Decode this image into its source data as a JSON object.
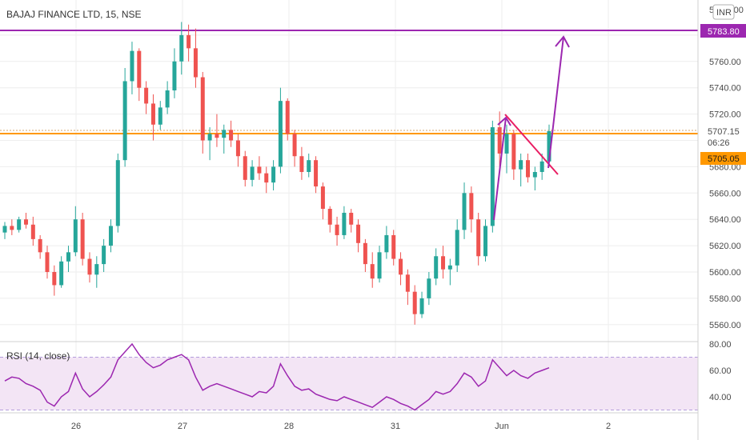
{
  "header": {
    "symbol_title": "BAJAJ FINANCE LTD, 15, NSE",
    "currency_badge": "INR"
  },
  "price_axis": {
    "top_label_partial": "5 800.00",
    "labels": [
      "5760.00",
      "5740.00",
      "5720.00",
      "5680.00",
      "5660.00",
      "5640.00",
      "5620.00",
      "5600.00",
      "5580.00",
      "5560.00"
    ]
  },
  "rsi_axis": {
    "labels": [
      "80.00",
      "60.00",
      "40.00"
    ]
  },
  "time_axis": {
    "labels": [
      "26",
      "27",
      "28",
      "31",
      "Jun",
      "2"
    ]
  },
  "tags": {
    "resistance": "5783.80",
    "last_price": "5707.15",
    "countdown": "06:26",
    "support": "5705.05"
  },
  "indicator": {
    "label": "RSI (14, close)"
  },
  "colors": {
    "up": "#26a69a",
    "down": "#ef5350",
    "resistance_line": "#9c27b0",
    "support_line": "#ff9800",
    "rsi_line": "#9c27b0",
    "rsi_band": "#f3e5f5",
    "trendline_red": "#e91e63",
    "grid": "#eeeeee"
  },
  "chart_data": [
    {
      "type": "candlestick",
      "symbol": "BAJAJ FINANCE LTD",
      "interval": "15",
      "exchange": "NSE",
      "y_range": [
        5550,
        5800
      ],
      "x_labels": [
        "26",
        "27",
        "28",
        "31",
        "Jun",
        "2"
      ],
      "horizontal_levels": [
        {
          "value": 5783.8,
          "color": "#9c27b0"
        },
        {
          "value": 5705.05,
          "color": "#ff9800"
        }
      ],
      "last_price": 5707.15,
      "candles": [
        [
          5630,
          5638,
          5625,
          5635
        ],
        [
          5635,
          5640,
          5628,
          5632
        ],
        [
          5632,
          5642,
          5630,
          5640
        ],
        [
          5640,
          5645,
          5633,
          5636
        ],
        [
          5636,
          5642,
          5620,
          5625
        ],
        [
          5625,
          5628,
          5610,
          5615
        ],
        [
          5615,
          5620,
          5595,
          5600
        ],
        [
          5600,
          5605,
          5582,
          5590
        ],
        [
          5590,
          5612,
          5588,
          5608
        ],
        [
          5608,
          5620,
          5600,
          5615
        ],
        [
          5615,
          5650,
          5612,
          5640
        ],
        [
          5640,
          5645,
          5605,
          5610
        ],
        [
          5610,
          5615,
          5592,
          5598
        ],
        [
          5598,
          5612,
          5588,
          5606
        ],
        [
          5606,
          5625,
          5600,
          5620
        ],
        [
          5620,
          5640,
          5615,
          5635
        ],
        [
          5635,
          5690,
          5630,
          5685
        ],
        [
          5685,
          5755,
          5680,
          5745
        ],
        [
          5745,
          5775,
          5735,
          5768
        ],
        [
          5768,
          5770,
          5730,
          5740
        ],
        [
          5740,
          5745,
          5720,
          5728
        ],
        [
          5728,
          5735,
          5700,
          5712
        ],
        [
          5712,
          5730,
          5708,
          5725
        ],
        [
          5725,
          5745,
          5720,
          5738
        ],
        [
          5738,
          5770,
          5732,
          5760
        ],
        [
          5760,
          5790,
          5750,
          5780
        ],
        [
          5780,
          5788,
          5760,
          5770
        ],
        [
          5770,
          5785,
          5740,
          5748
        ],
        [
          5748,
          5752,
          5690,
          5700
        ],
        [
          5700,
          5710,
          5685,
          5705
        ],
        [
          5705,
          5720,
          5695,
          5702
        ],
        [
          5702,
          5712,
          5690,
          5708
        ],
        [
          5708,
          5715,
          5695,
          5700
        ],
        [
          5700,
          5705,
          5680,
          5688
        ],
        [
          5688,
          5692,
          5665,
          5670
        ],
        [
          5670,
          5685,
          5665,
          5680
        ],
        [
          5680,
          5688,
          5670,
          5675
        ],
        [
          5675,
          5680,
          5660,
          5668
        ],
        [
          5668,
          5685,
          5662,
          5680
        ],
        [
          5680,
          5740,
          5675,
          5730
        ],
        [
          5730,
          5732,
          5700,
          5705
        ],
        [
          5705,
          5708,
          5680,
          5688
        ],
        [
          5688,
          5695,
          5670,
          5676
        ],
        [
          5676,
          5690,
          5672,
          5685
        ],
        [
          5685,
          5688,
          5660,
          5665
        ],
        [
          5665,
          5668,
          5640,
          5648
        ],
        [
          5648,
          5650,
          5630,
          5636
        ],
        [
          5636,
          5642,
          5620,
          5628
        ],
        [
          5628,
          5650,
          5625,
          5645
        ],
        [
          5645,
          5648,
          5630,
          5636
        ],
        [
          5636,
          5640,
          5615,
          5622
        ],
        [
          5622,
          5625,
          5600,
          5606
        ],
        [
          5606,
          5615,
          5588,
          5595
        ],
        [
          5595,
          5620,
          5592,
          5615
        ],
        [
          5615,
          5635,
          5610,
          5628
        ],
        [
          5628,
          5632,
          5605,
          5610
        ],
        [
          5610,
          5615,
          5590,
          5598
        ],
        [
          5598,
          5602,
          5575,
          5585
        ],
        [
          5585,
          5590,
          5560,
          5568
        ],
        [
          5568,
          5585,
          5565,
          5580
        ],
        [
          5580,
          5600,
          5575,
          5595
        ],
        [
          5595,
          5618,
          5590,
          5612
        ],
        [
          5612,
          5620,
          5595,
          5602
        ],
        [
          5602,
          5610,
          5590,
          5605
        ],
        [
          5605,
          5640,
          5600,
          5632
        ],
        [
          5632,
          5668,
          5625,
          5660
        ],
        [
          5660,
          5665,
          5630,
          5640
        ],
        [
          5640,
          5645,
          5605,
          5612
        ],
        [
          5612,
          5640,
          5608,
          5635
        ],
        [
          5635,
          5715,
          5630,
          5710
        ],
        [
          5710,
          5722,
          5680,
          5690
        ],
        [
          5690,
          5712,
          5675,
          5705
        ],
        [
          5705,
          5708,
          5670,
          5678
        ],
        [
          5678,
          5690,
          5665,
          5685
        ],
        [
          5685,
          5690,
          5668,
          5672
        ],
        [
          5672,
          5680,
          5662,
          5676
        ],
        [
          5676,
          5690,
          5670,
          5684
        ],
        [
          5684,
          5712,
          5680,
          5707
        ]
      ]
    },
    {
      "type": "line",
      "name": "RSI (14, close)",
      "y_range": [
        25,
        85
      ],
      "band": [
        30,
        70
      ],
      "x_labels": [
        "26",
        "27",
        "28",
        "31",
        "Jun",
        "2"
      ],
      "values": [
        52,
        55,
        54,
        50,
        48,
        45,
        36,
        33,
        40,
        44,
        58,
        46,
        40,
        44,
        49,
        55,
        68,
        74,
        80,
        72,
        66,
        62,
        64,
        68,
        70,
        72,
        68,
        55,
        45,
        48,
        50,
        48,
        46,
        44,
        42,
        40,
        44,
        43,
        48,
        65,
        56,
        48,
        45,
        46,
        42,
        40,
        38,
        37,
        40,
        38,
        36,
        34,
        32,
        36,
        40,
        38,
        35,
        33,
        30,
        34,
        38,
        44,
        42,
        44,
        50,
        58,
        55,
        48,
        52,
        68,
        62,
        56,
        60,
        56,
        54,
        58,
        60,
        62
      ]
    }
  ]
}
